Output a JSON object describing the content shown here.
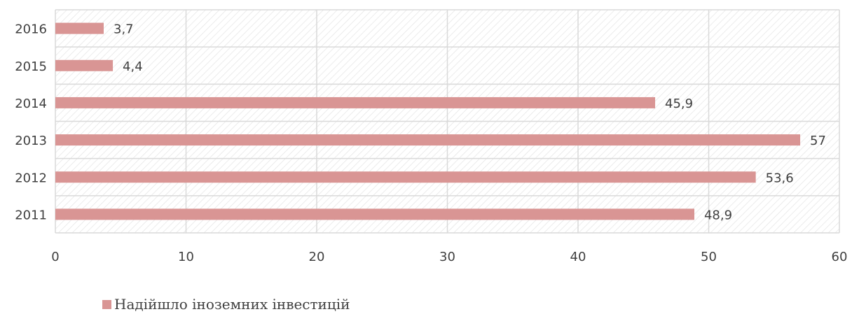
{
  "chart_data": {
    "type": "bar",
    "orientation": "horizontal",
    "categories": [
      "2016",
      "2015",
      "2014",
      "2013",
      "2012",
      "2011"
    ],
    "series": [
      {
        "name": "Надійшло іноземних інвестицій",
        "values": [
          3.7,
          4.4,
          45.9,
          57,
          53.6,
          48.9
        ],
        "data_labels": [
          "3,7",
          "4,4",
          "45,9",
          "57",
          "53,6",
          "48,9"
        ],
        "color": "#d99594"
      }
    ],
    "x_ticks": [
      0,
      10,
      20,
      30,
      40,
      50,
      60
    ],
    "x_tick_labels": [
      "0",
      "10",
      "20",
      "30",
      "40",
      "50",
      "60"
    ],
    "xlim": [
      0,
      60
    ],
    "grid": true,
    "plot_background": "diagonal-hatch",
    "legend_position": "bottom-left"
  }
}
